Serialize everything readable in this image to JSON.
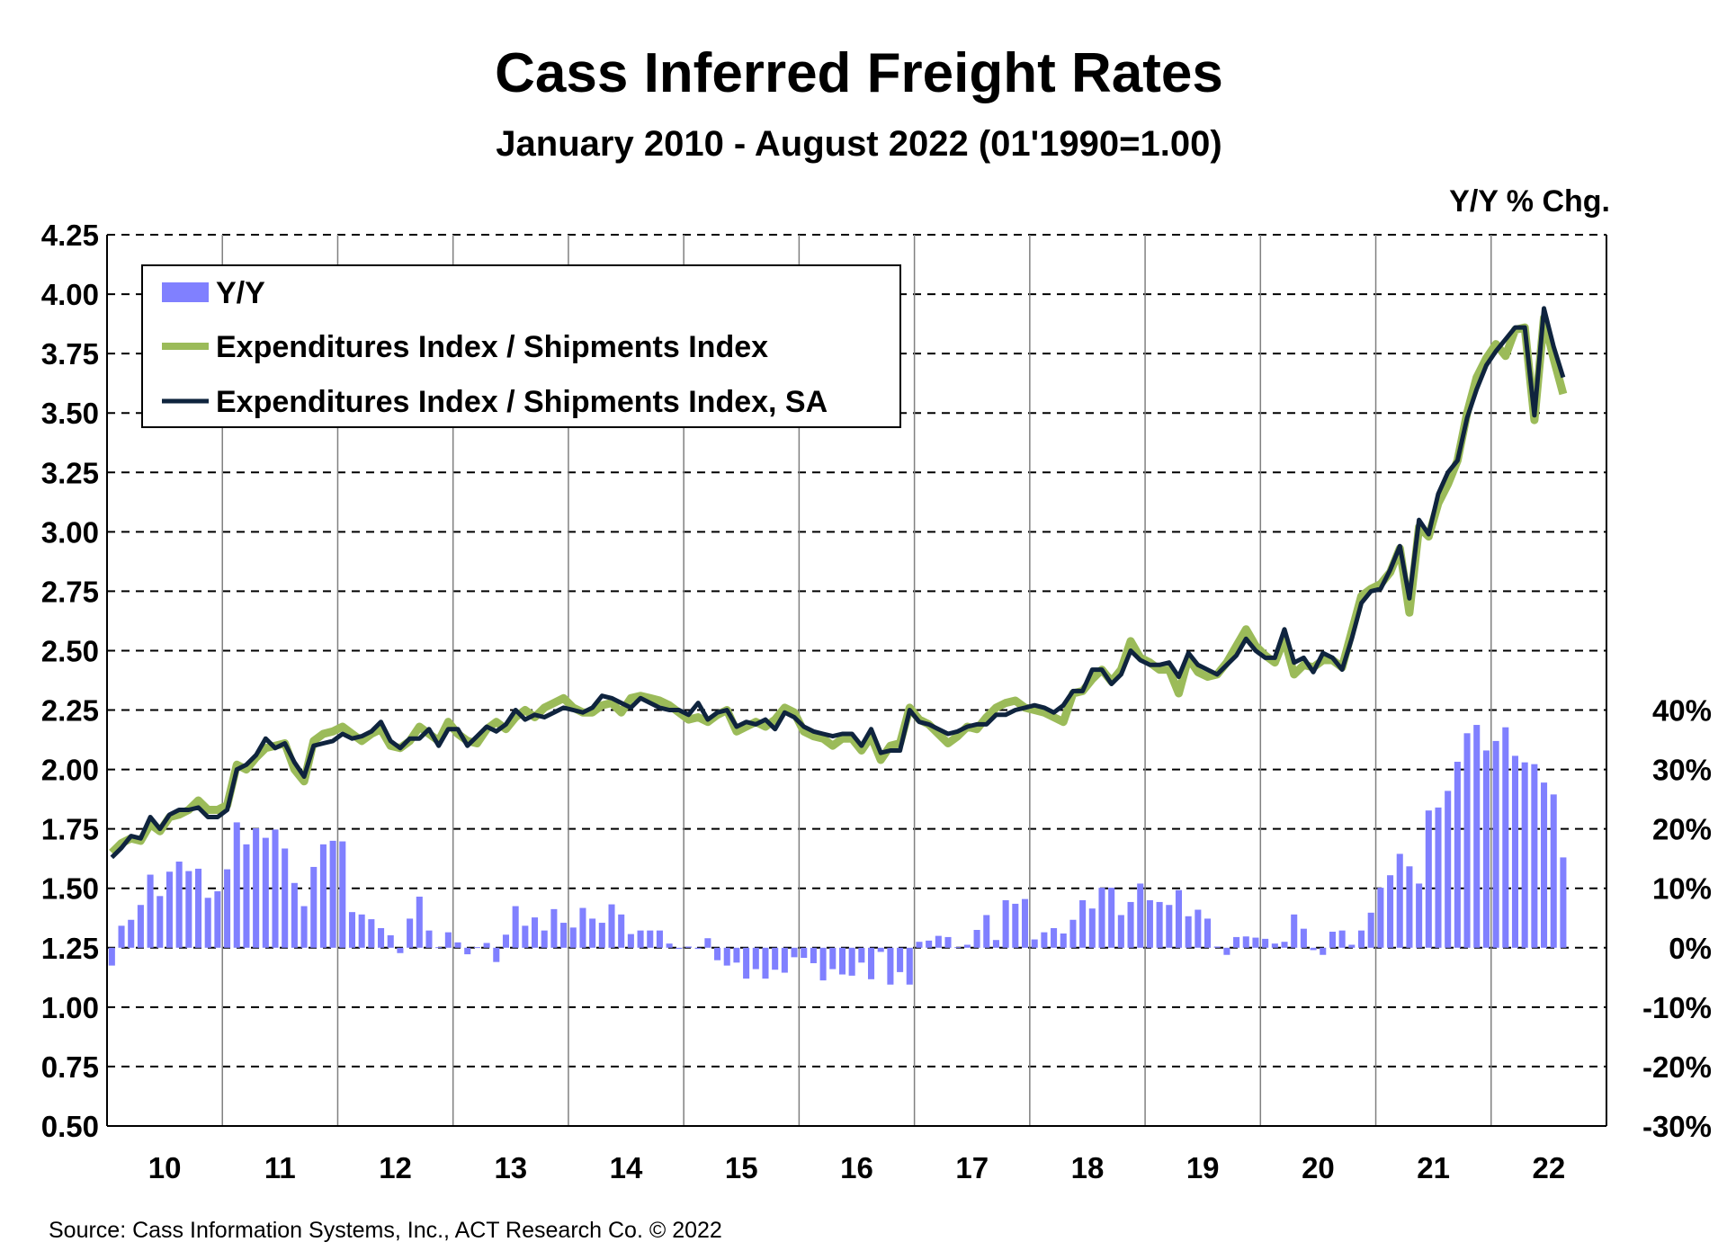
{
  "chart_data": {
    "type": "bar+line",
    "title": "Cass Inferred Freight Rates",
    "subtitle": "January 2010 - August 2022 (01'1990=1.00)",
    "right_axis_label": "Y/Y % Chg.",
    "source": "Source: Cass Information Systems, Inc., ACT Research Co. © 2022",
    "start": "2010-01",
    "months_on_axis": 156,
    "x_tick_labels": [
      "10",
      "11",
      "12",
      "13",
      "14",
      "15",
      "16",
      "17",
      "18",
      "19",
      "20",
      "21",
      "22"
    ],
    "left_axis": {
      "min": 0.5,
      "max": 4.25,
      "step": 0.25,
      "tick_labels": [
        "4.25",
        "4.00",
        "3.75",
        "3.50",
        "3.25",
        "3.00",
        "2.75",
        "2.50",
        "2.25",
        "2.00",
        "1.75",
        "1.50",
        "1.25",
        "1.00",
        "0.75",
        "0.50"
      ]
    },
    "right_axis": {
      "min": -30,
      "max": 40,
      "tick_labels": [
        "40%",
        "30%",
        "20%",
        "10%",
        "0%",
        "-10%",
        "-20%",
        "-30%"
      ],
      "zero_at_left_value": 1.25,
      "pct_per_left_unit": 40
    },
    "grid": "horizontal dashed, vertical year lines",
    "legend": {
      "placement": "top-left",
      "entries": [
        "Y/Y",
        "Expenditures Index / Shipments Index",
        "Expenditures Index / Shipments Index, SA"
      ]
    },
    "colors": {
      "yy": "#8080FF",
      "nsa": "#9BBB59",
      "sa": "#0F243E"
    },
    "series": [
      {
        "name": "Y/Y",
        "axis": "right",
        "kind": "bar",
        "values": [
          -3,
          3.7,
          4.7,
          7.2,
          12.3,
          8.7,
          12.8,
          14.5,
          12.9,
          13.3,
          8.4,
          9.5,
          13.2,
          21.1,
          17.4,
          20.1,
          18.5,
          19.9,
          16.7,
          10.9,
          7.0,
          13.6,
          17.4,
          18.0,
          17.9,
          6.0,
          5.6,
          4.8,
          3.3,
          2.1,
          -0.9,
          4.9,
          8.6,
          2.9,
          0.1,
          2.6,
          0.9,
          -1.1,
          0.1,
          0.8,
          -2.4,
          2.2,
          7.0,
          3.7,
          5.1,
          2.9,
          6.5,
          4.2,
          3.4,
          6.7,
          4.9,
          4.2,
          7.3,
          5.6,
          2.3,
          2.9,
          2.9,
          2.9,
          0.7,
          -0.2,
          0.2,
          -0.2,
          1.6,
          -2.1,
          -3.0,
          -2.5,
          -5.2,
          -3.6,
          -5.2,
          -3.7,
          -4.2,
          -1.6,
          -1.7,
          -2.6,
          -5.5,
          -3.6,
          -4.5,
          -4.7,
          -2.5,
          -5.3,
          -0.7,
          -6.2,
          -4.1,
          -6.2,
          1.0,
          1.2,
          2.0,
          1.8,
          0.1,
          0.5,
          3.0,
          5.5,
          1.3,
          8.0,
          7.4,
          8.2,
          1.4,
          2.6,
          3.3,
          2.4,
          4.7,
          8.0,
          6.6,
          10.1,
          10.1,
          5.5,
          7.7,
          10.8,
          8.0,
          7.7,
          7.2,
          9.7,
          5.3,
          6.4,
          4.9,
          0.2,
          -1.2,
          1.8,
          1.9,
          1.7,
          1.5,
          0.7,
          1.0,
          5.6,
          3.2,
          -0.4,
          -1.2,
          2.7,
          2.9,
          0.5,
          2.9,
          5.9,
          10.1,
          12.2,
          15.8,
          13.7,
          10.8,
          23.1,
          23.6,
          26.4,
          31.3,
          36.1,
          37.5,
          33.2,
          34.8,
          37.1,
          32.3,
          31.2,
          30.9,
          27.8,
          25.8,
          15.2
        ]
      },
      {
        "name": "Expenditures Index / Shipments Index",
        "axis": "left",
        "kind": "line",
        "values": [
          1.65,
          1.69,
          1.71,
          1.7,
          1.77,
          1.74,
          1.8,
          1.81,
          1.83,
          1.87,
          1.83,
          1.83,
          1.85,
          2.02,
          2.0,
          2.05,
          2.09,
          2.1,
          2.11,
          2.0,
          1.95,
          2.12,
          2.15,
          2.16,
          2.18,
          2.15,
          2.12,
          2.15,
          2.17,
          2.1,
          2.09,
          2.12,
          2.18,
          2.15,
          2.12,
          2.2,
          2.15,
          2.12,
          2.11,
          2.17,
          2.2,
          2.17,
          2.22,
          2.25,
          2.22,
          2.26,
          2.28,
          2.3,
          2.26,
          2.24,
          2.24,
          2.27,
          2.28,
          2.24,
          2.3,
          2.31,
          2.3,
          2.29,
          2.27,
          2.24,
          2.21,
          2.22,
          2.2,
          2.23,
          2.25,
          2.16,
          2.18,
          2.2,
          2.18,
          2.21,
          2.26,
          2.24,
          2.16,
          2.14,
          2.13,
          2.1,
          2.13,
          2.13,
          2.08,
          2.14,
          2.04,
          2.1,
          2.11,
          2.26,
          2.21,
          2.19,
          2.15,
          2.11,
          2.14,
          2.18,
          2.17,
          2.22,
          2.26,
          2.28,
          2.29,
          2.26,
          2.25,
          2.24,
          2.22,
          2.2,
          2.32,
          2.33,
          2.38,
          2.42,
          2.37,
          2.42,
          2.54,
          2.47,
          2.45,
          2.42,
          2.42,
          2.32,
          2.47,
          2.41,
          2.39,
          2.4,
          2.45,
          2.52,
          2.59,
          2.52,
          2.48,
          2.45,
          2.55,
          2.4,
          2.44,
          2.43,
          2.46,
          2.46,
          2.43,
          2.58,
          2.73,
          2.76,
          2.78,
          2.83,
          2.93,
          2.66,
          3.02,
          2.98,
          3.12,
          3.2,
          3.3,
          3.5,
          3.65,
          3.73,
          3.79,
          3.74,
          3.85,
          3.86,
          3.47,
          3.9,
          3.73,
          3.58
        ]
      },
      {
        "name": "Expenditures Index / Shipments Index, SA",
        "axis": "left",
        "kind": "line",
        "values": [
          1.63,
          1.67,
          1.72,
          1.71,
          1.8,
          1.75,
          1.81,
          1.83,
          1.83,
          1.84,
          1.8,
          1.8,
          1.83,
          2.0,
          2.02,
          2.06,
          2.13,
          2.09,
          2.11,
          2.03,
          1.97,
          2.1,
          2.11,
          2.12,
          2.15,
          2.13,
          2.14,
          2.16,
          2.2,
          2.12,
          2.09,
          2.13,
          2.13,
          2.17,
          2.1,
          2.17,
          2.17,
          2.1,
          2.14,
          2.18,
          2.16,
          2.19,
          2.25,
          2.21,
          2.23,
          2.22,
          2.24,
          2.26,
          2.25,
          2.24,
          2.26,
          2.31,
          2.3,
          2.28,
          2.26,
          2.3,
          2.28,
          2.26,
          2.25,
          2.25,
          2.23,
          2.28,
          2.21,
          2.24,
          2.25,
          2.18,
          2.2,
          2.19,
          2.21,
          2.17,
          2.24,
          2.22,
          2.18,
          2.16,
          2.15,
          2.14,
          2.15,
          2.15,
          2.1,
          2.17,
          2.07,
          2.08,
          2.08,
          2.25,
          2.2,
          2.19,
          2.17,
          2.15,
          2.16,
          2.18,
          2.19,
          2.19,
          2.23,
          2.23,
          2.25,
          2.26,
          2.27,
          2.26,
          2.24,
          2.27,
          2.33,
          2.33,
          2.42,
          2.42,
          2.36,
          2.4,
          2.5,
          2.46,
          2.44,
          2.44,
          2.45,
          2.39,
          2.49,
          2.44,
          2.42,
          2.4,
          2.44,
          2.48,
          2.55,
          2.5,
          2.47,
          2.47,
          2.59,
          2.45,
          2.47,
          2.41,
          2.49,
          2.47,
          2.42,
          2.55,
          2.7,
          2.75,
          2.76,
          2.84,
          2.94,
          2.72,
          3.05,
          2.99,
          3.16,
          3.25,
          3.3,
          3.48,
          3.6,
          3.7,
          3.76,
          3.81,
          3.86,
          3.86,
          3.49,
          3.94,
          3.78,
          3.65
        ]
      }
    ]
  }
}
